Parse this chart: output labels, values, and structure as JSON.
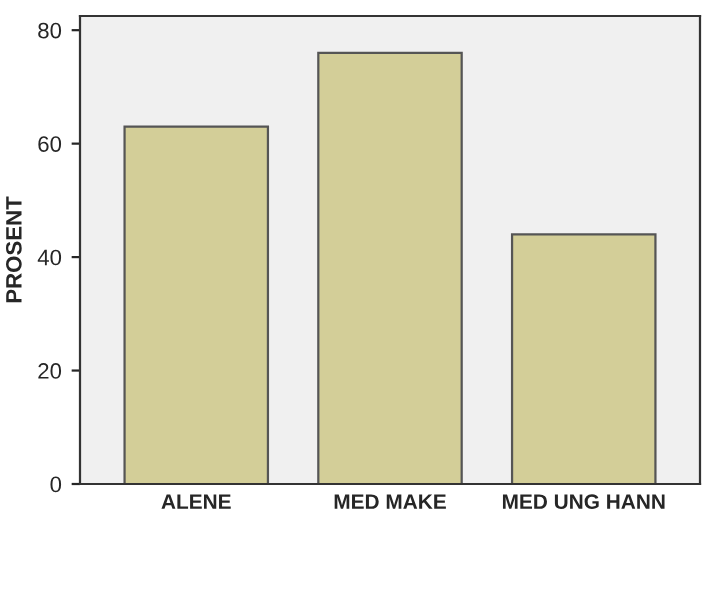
{
  "chart_data": {
    "type": "bar",
    "ylabel": "PROSENT",
    "categories": [
      "ALENE",
      "MED MAKE",
      "MED UNG HANN"
    ],
    "values": [
      63,
      76,
      44
    ],
    "color": "#d3ce98",
    "ylim": [
      0,
      82.5
    ],
    "yticks": [
      0,
      20,
      40,
      60,
      80
    ],
    "grid": false
  }
}
